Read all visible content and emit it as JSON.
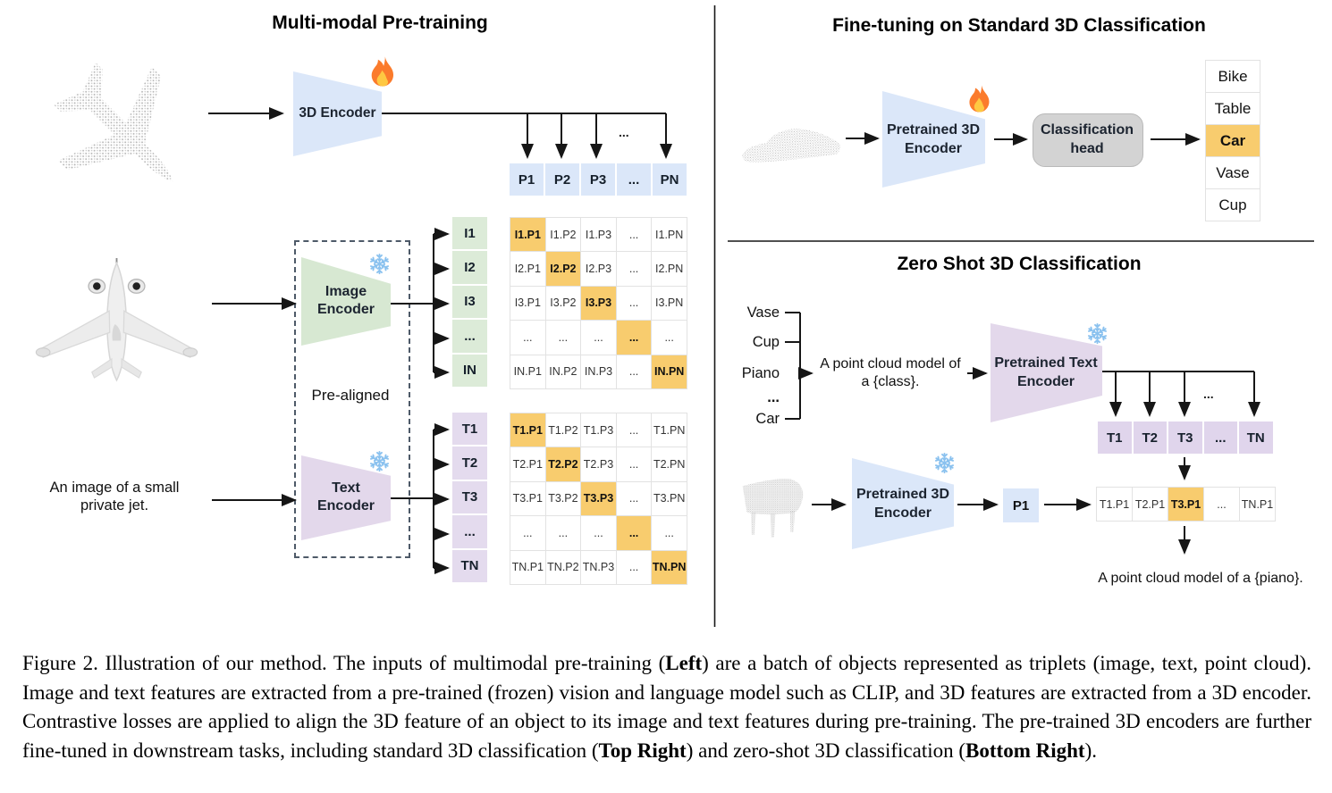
{
  "figure": {
    "left": {
      "title": "Multi-modal Pre-training",
      "encoder_3d": "3D Encoder",
      "image_encoder": "Image\nEncoder",
      "text_encoder": "Text\nEncoder",
      "prealigned": "Pre-aligned",
      "image_caption": "An image of a small\nprivate jet.",
      "ellipsis": "...",
      "p_header": [
        "P1",
        "P2",
        "P3",
        "...",
        "PN"
      ],
      "i_labels": [
        "I1",
        "I2",
        "I3",
        "...",
        "IN"
      ],
      "t_labels": [
        "T1",
        "T2",
        "T3",
        "...",
        "TN"
      ],
      "i_matrix": [
        [
          "I1.P1",
          "I1.P2",
          "I1.P3",
          "...",
          "I1.PN"
        ],
        [
          "I2.P1",
          "I2.P2",
          "I2.P3",
          "...",
          "I2.PN"
        ],
        [
          "I3.P1",
          "I3.P2",
          "I3.P3",
          "...",
          "I3.PN"
        ],
        [
          "...",
          "...",
          "...",
          "...",
          "..."
        ],
        [
          "IN.P1",
          "IN.P2",
          "IN.P3",
          "...",
          "IN.PN"
        ]
      ],
      "t_matrix": [
        [
          "T1.P1",
          "T1.P2",
          "T1.P3",
          "...",
          "T1.PN"
        ],
        [
          "T2.P1",
          "T2.P2",
          "T2.P3",
          "...",
          "T2.PN"
        ],
        [
          "T3.P1",
          "T3.P2",
          "T3.P3",
          "...",
          "T3.PN"
        ],
        [
          "...",
          "...",
          "...",
          "...",
          "..."
        ],
        [
          "TN.P1",
          "TN.P2",
          "TN.P3",
          "...",
          "TN.PN"
        ]
      ]
    },
    "top_right": {
      "title": "Fine-tuning on Standard 3D Classification",
      "encoder": "Pretrained 3D\nEncoder",
      "head": "Classification\nhead",
      "classes": [
        "Bike",
        "Table",
        "Car",
        "Vase",
        "Cup"
      ],
      "highlighted_class": "Car"
    },
    "bottom_right": {
      "title": "Zero Shot 3D Classification",
      "classes": [
        "Vase",
        "Cup",
        "Piano",
        "...",
        "Car"
      ],
      "prompt": "A point cloud model of\na {class}.",
      "text_encoder": "Pretrained Text\nEncoder",
      "encoder_3d": "Pretrained 3D\nEncoder",
      "p_feature": "P1",
      "t_row": [
        "T1",
        "T2",
        "T3",
        "...",
        "TN"
      ],
      "tp_row": [
        "T1.P1",
        "T2.P1",
        "T3.P1",
        "...",
        "TN.P1"
      ],
      "highlighted_tp": "T3.P1",
      "ellipsis": "...",
      "result_text": "A point cloud model of a {piano}."
    }
  },
  "icons": {
    "trainable": "flame-icon",
    "frozen": "snowflake-icon"
  },
  "colors": {
    "blue_fill": "#dbe7f9",
    "green_fill": "#d7e8d2",
    "purple_fill": "#e3d8eb",
    "orange_hl": "#f8cc6e",
    "gray_head": "#d3d3d3",
    "grid_line": "#e2e2e2",
    "arrow": "#161616",
    "pc_gray": "#b5b5b5"
  },
  "caption": {
    "segments": [
      {
        "text": "Figure 2. Illustration of our method. The inputs of multimodal pre-training (",
        "bold": false
      },
      {
        "text": "Left",
        "bold": true
      },
      {
        "text": ") are a batch of objects represented as triplets (image, text, point cloud). Image and text features are extracted from a pre-trained (frozen) vision and language model such as CLIP, and 3D features are extracted from a 3D encoder. Contrastive losses are applied to align the 3D feature of an object to its image and text features during pre-training. The pre-trained 3D encoders are further fine-tuned in downstream tasks, including standard 3D classification (",
        "bold": false
      },
      {
        "text": "Top Right",
        "bold": true
      },
      {
        "text": ") and zero-shot 3D classification (",
        "bold": false
      },
      {
        "text": "Bottom Right",
        "bold": true
      },
      {
        "text": ").",
        "bold": false
      }
    ]
  }
}
